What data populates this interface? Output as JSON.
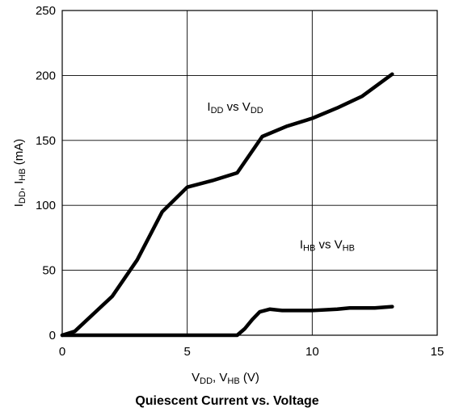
{
  "chart_data": {
    "type": "line",
    "title": "Quiescent Current vs. Voltage",
    "xlabel": {
      "parts": [
        {
          "t": "V"
        },
        {
          "t": "DD",
          "sub": true
        },
        {
          "t": ", V"
        },
        {
          "t": "HB",
          "sub": true
        },
        {
          "t": " (V)"
        }
      ]
    },
    "ylabel": {
      "parts": [
        {
          "t": "I"
        },
        {
          "t": "DD",
          "sub": true
        },
        {
          "t": ", I"
        },
        {
          "t": "HB",
          "sub": true
        },
        {
          "t": " (mA)"
        }
      ]
    },
    "xlim": [
      0,
      15
    ],
    "ylim": [
      0,
      250
    ],
    "xticks": [
      0,
      5,
      10,
      15
    ],
    "yticks": [
      0,
      50,
      100,
      150,
      200,
      250
    ],
    "grid": true,
    "series": [
      {
        "name": "IDD vs VDD",
        "label_parts": [
          {
            "t": "I"
          },
          {
            "t": "DD",
            "sub": true
          },
          {
            "t": " vs V"
          },
          {
            "t": "DD",
            "sub": true
          }
        ],
        "x": [
          0,
          0.5,
          2,
          3,
          4,
          5,
          6,
          7,
          8,
          9,
          10,
          11,
          12,
          13.2
        ],
        "y": [
          0,
          3,
          30,
          58,
          95,
          114,
          119,
          125,
          153,
          161,
          167,
          175,
          184,
          201
        ]
      },
      {
        "name": "IHB vs VHB",
        "label_parts": [
          {
            "t": "I"
          },
          {
            "t": "HB",
            "sub": true
          },
          {
            "t": " vs V"
          },
          {
            "t": "HB",
            "sub": true
          }
        ],
        "x": [
          0,
          7,
          7.3,
          7.6,
          7.9,
          8.3,
          8.8,
          10,
          11,
          11.5,
          12,
          12.5,
          13.2
        ],
        "y": [
          0,
          0,
          5,
          12,
          18,
          20,
          19,
          19,
          20,
          21,
          21,
          21,
          22
        ]
      }
    ],
    "color": "#000000"
  }
}
